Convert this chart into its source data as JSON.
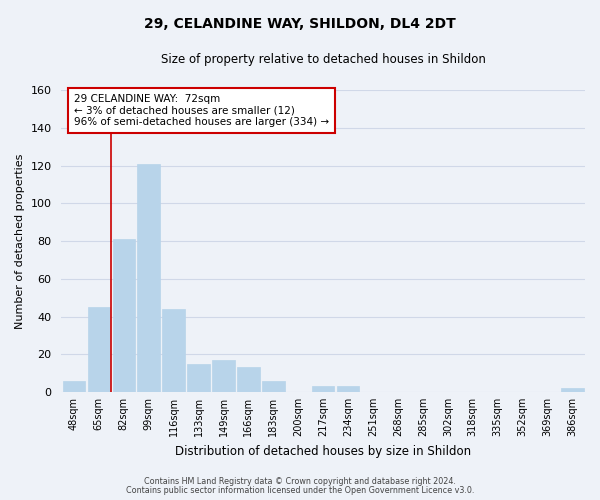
{
  "title": "29, CELANDINE WAY, SHILDON, DL4 2DT",
  "subtitle": "Size of property relative to detached houses in Shildon",
  "xlabel": "Distribution of detached houses by size in Shildon",
  "ylabel": "Number of detached properties",
  "bar_labels": [
    "48sqm",
    "65sqm",
    "82sqm",
    "99sqm",
    "116sqm",
    "133sqm",
    "149sqm",
    "166sqm",
    "183sqm",
    "200sqm",
    "217sqm",
    "234sqm",
    "251sqm",
    "268sqm",
    "285sqm",
    "302sqm",
    "318sqm",
    "335sqm",
    "352sqm",
    "369sqm",
    "386sqm"
  ],
  "bar_values": [
    6,
    45,
    81,
    121,
    44,
    15,
    17,
    13,
    6,
    0,
    3,
    3,
    0,
    0,
    0,
    0,
    0,
    0,
    0,
    0,
    2
  ],
  "bar_color": "#b8d4ea",
  "bar_edge_color": "#b8d4ea",
  "reference_line_x": 1.5,
  "reference_line_color": "#cc0000",
  "annotation_line1": "29 CELANDINE WAY:  72sqm",
  "annotation_line2": "← 3% of detached houses are smaller (12)",
  "annotation_line3": "96% of semi-detached houses are larger (334) →",
  "annotation_box_color": "#ffffff",
  "annotation_box_edge": "#cc0000",
  "ylim": [
    0,
    160
  ],
  "yticks": [
    0,
    20,
    40,
    60,
    80,
    100,
    120,
    140,
    160
  ],
  "grid_color": "#d0d8e8",
  "bg_color": "#eef2f8",
  "footer1": "Contains HM Land Registry data © Crown copyright and database right 2024.",
  "footer2": "Contains public sector information licensed under the Open Government Licence v3.0."
}
